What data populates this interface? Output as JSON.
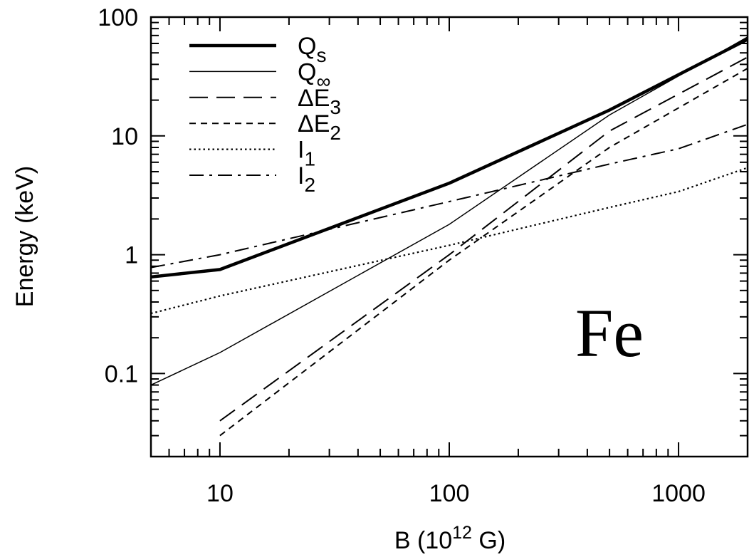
{
  "chart_data": {
    "type": "line",
    "xscale": "log",
    "yscale": "log",
    "xlim": [
      5,
      2000
    ],
    "ylim": [
      0.02,
      100
    ],
    "xlabel": "B (10^12 G)",
    "xlabel_parts": {
      "base": "B (10",
      "sup": "12",
      "tail": " G)"
    },
    "ylabel": "Energy (keV)",
    "x_ticks": [
      10,
      100,
      1000
    ],
    "x_tick_labels": [
      "10",
      "100",
      "1000"
    ],
    "y_ticks": [
      0.1,
      1,
      10,
      100
    ],
    "y_tick_labels": [
      "0.1",
      "1",
      "10",
      "100"
    ],
    "annotation": "Fe",
    "grid": false,
    "legend_position": "top-left",
    "series": [
      {
        "name": "Qs",
        "label_base": "Q",
        "label_sub": "s",
        "style": "thick-solid",
        "x": [
          5,
          10,
          100,
          500,
          2000
        ],
        "y": [
          0.65,
          0.75,
          4.0,
          16.5,
          65
        ]
      },
      {
        "name": "Q∞",
        "label_base": "Q",
        "label_sub": "∞",
        "style": "thin-solid",
        "x": [
          5,
          10,
          100,
          500,
          2000
        ],
        "y": [
          0.08,
          0.15,
          1.8,
          15.0,
          68
        ]
      },
      {
        "name": "ΔE3",
        "label_base": "ΔE",
        "label_sub": "3",
        "style": "long-dash",
        "x": [
          10,
          100,
          500,
          2000
        ],
        "y": [
          0.04,
          1.0,
          11.0,
          46
        ]
      },
      {
        "name": "ΔE2",
        "label_base": "ΔE",
        "label_sub": "2",
        "style": "short-dash",
        "x": [
          10,
          100,
          500,
          2000
        ],
        "y": [
          0.03,
          0.9,
          8.0,
          37
        ]
      },
      {
        "name": "I1",
        "label_base": "I",
        "label_sub": "1",
        "style": "dotted",
        "x": [
          5,
          10,
          100,
          500,
          1000,
          2000
        ],
        "y": [
          0.32,
          0.45,
          1.2,
          2.5,
          3.4,
          5.4
        ]
      },
      {
        "name": "I2",
        "label_base": "I",
        "label_sub": "2",
        "style": "dash-dot",
        "x": [
          5,
          10,
          100,
          500,
          1000,
          2000
        ],
        "y": [
          0.78,
          1.0,
          2.8,
          5.8,
          7.8,
          12.5
        ]
      }
    ]
  }
}
